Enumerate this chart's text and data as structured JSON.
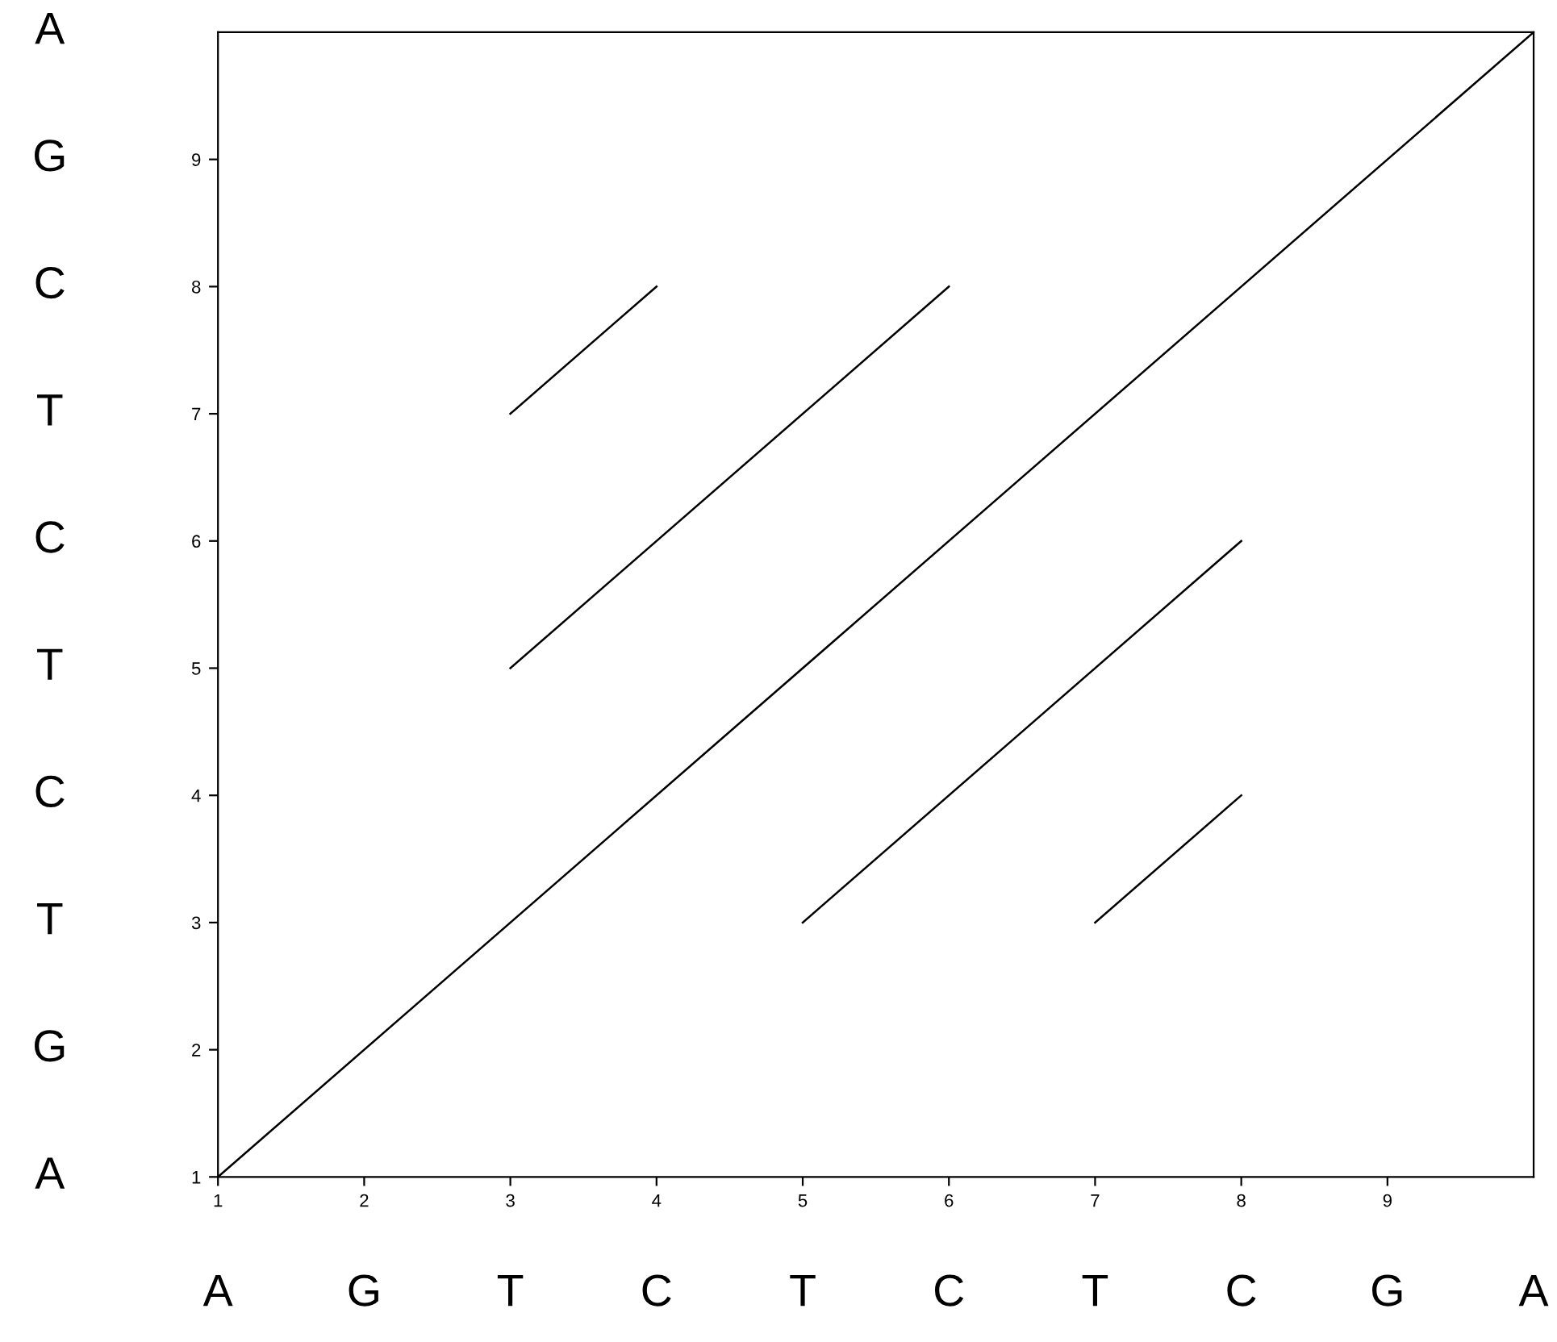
{
  "chart_data": {
    "type": "line",
    "xlim": [
      1,
      10
    ],
    "ylim": [
      1,
      10
    ],
    "xticks": [
      1,
      2,
      3,
      4,
      5,
      6,
      7,
      8,
      9
    ],
    "yticks": [
      1,
      2,
      3,
      4,
      5,
      6,
      7,
      8,
      9
    ],
    "grid": false,
    "legend": false,
    "marker": "none",
    "line_style": "solid",
    "series": [
      {
        "color": "#000000",
        "x": [
          1,
          10
        ],
        "values": [
          1,
          10
        ]
      },
      {
        "color": "#000000",
        "x": [
          3,
          4
        ],
        "values": [
          7,
          8
        ]
      },
      {
        "color": "#000000",
        "x": [
          3,
          6
        ],
        "values": [
          5,
          8
        ]
      },
      {
        "color": "#000000",
        "x": [
          5,
          8
        ],
        "values": [
          3,
          6
        ]
      },
      {
        "color": "#000000",
        "x": [
          7,
          8
        ],
        "values": [
          3,
          4
        ]
      }
    ],
    "annotations": [
      "A",
      "G",
      "T",
      "C",
      "T",
      "C",
      "T",
      "C",
      "G",
      "A",
      "A",
      "G",
      "T",
      "C",
      "T",
      "C",
      "T",
      "C",
      "G",
      "A"
    ]
  }
}
